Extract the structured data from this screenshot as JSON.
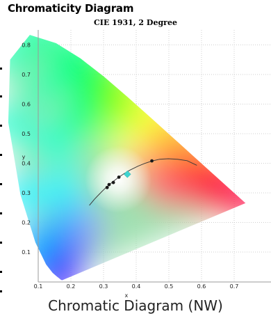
{
  "header": {
    "app_title": "Chromaticity Diagram",
    "subtitle": "CIE 1931, 2 Degree"
  },
  "caption": "Chromatic Diagram (NW)",
  "chart_data": {
    "type": "scatter",
    "title": "CIE 1931, 2 Degree",
    "xlabel": "x",
    "ylabel": "y",
    "xlim": [
      0.0,
      0.74
    ],
    "ylim": [
      0.0,
      0.85
    ],
    "x_ticks": [
      0.1,
      0.2,
      0.3,
      0.4,
      0.5,
      0.6,
      0.7
    ],
    "y_ticks": [
      0.1,
      0.2,
      0.3,
      0.4,
      0.5,
      0.6,
      0.7,
      0.8
    ],
    "x_tick_labels": [
      "0.1",
      "0.2",
      "0.3",
      "0.4",
      "0.5",
      "0.6",
      "0.7"
    ],
    "y_tick_labels": [
      "0.1",
      "0.2",
      "0.3",
      "0.4",
      "0.5",
      "0.6",
      "0.7",
      "0.8"
    ],
    "grid": true,
    "spectral_locus": {
      "x": [
        0.1741,
        0.174,
        0.1738,
        0.1736,
        0.1733,
        0.1726,
        0.1714,
        0.1689,
        0.1644,
        0.1566,
        0.144,
        0.1241,
        0.0913,
        0.0454,
        0.0082,
        0.0139,
        0.0743,
        0.1547,
        0.2296,
        0.3016,
        0.3731,
        0.4441,
        0.5125,
        0.5752,
        0.627,
        0.6658,
        0.6915,
        0.7079,
        0.7347
      ],
      "y": [
        0.005,
        0.005,
        0.0049,
        0.0049,
        0.0048,
        0.0048,
        0.0051,
        0.0069,
        0.0109,
        0.0177,
        0.0297,
        0.0578,
        0.1327,
        0.295,
        0.5384,
        0.7502,
        0.8338,
        0.8059,
        0.7543,
        0.6923,
        0.6245,
        0.5547,
        0.4866,
        0.4242,
        0.3725,
        0.334,
        0.3083,
        0.292,
        0.2653
      ]
    },
    "planckian_locus": {
      "x": [
        0.5857,
        0.5559,
        0.5267,
        0.4985,
        0.472,
        0.4476,
        0.4255,
        0.4059,
        0.3805,
        0.3608,
        0.345,
        0.3324,
        0.3221,
        0.3064,
        0.2952,
        0.2807,
        0.272,
        0.2565
      ],
      "y": [
        0.3931,
        0.4086,
        0.4133,
        0.4152,
        0.4137,
        0.4074,
        0.3994,
        0.3904,
        0.3768,
        0.3636,
        0.3516,
        0.341,
        0.3318,
        0.3166,
        0.3048,
        0.2883,
        0.2782,
        0.258
      ]
    },
    "series": [
      {
        "marker": "dot",
        "color": "#1a1a1a",
        "x": [
          0.311,
          0.317,
          0.33,
          0.347,
          0.448
        ],
        "y": [
          0.318,
          0.328,
          0.335,
          0.353,
          0.408
        ]
      },
      {
        "marker": "diamond",
        "color": "#3fd4d0",
        "x": [
          0.373
        ],
        "y": [
          0.363
        ]
      }
    ]
  }
}
